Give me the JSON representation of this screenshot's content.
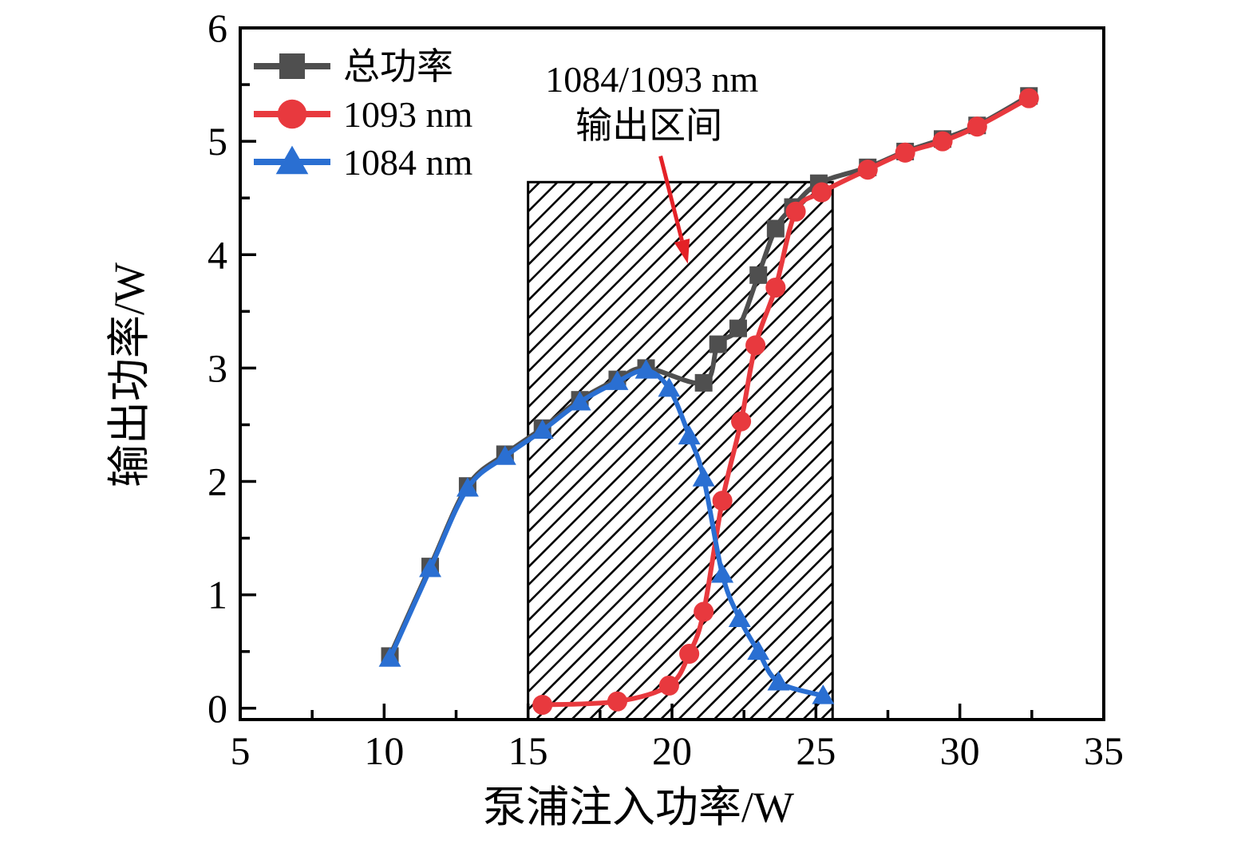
{
  "chart_data": {
    "type": "line",
    "title": "",
    "xlabel": "泵浦注入功率/W",
    "ylabel": "输出功率/W",
    "xlim": [
      5,
      35
    ],
    "ylim": [
      -0.1,
      6
    ],
    "x_major_ticks": [
      5,
      10,
      15,
      20,
      25,
      30,
      35
    ],
    "x_minor_ticks": [
      7.5,
      12.5,
      17.5,
      22.5,
      27.5,
      32.5
    ],
    "y_major_ticks": [
      0,
      1,
      2,
      3,
      4,
      5,
      6
    ],
    "y_minor_ticks": [
      0.5,
      1.5,
      2.5,
      3.5,
      4.5,
      5.5
    ],
    "grid": false,
    "legend_position": "upper-left-inside",
    "frame_color": "#000000",
    "series": [
      {
        "name": "总功率",
        "color": "#4f4f4f",
        "marker": "square",
        "points": [
          [
            10.2,
            0.46
          ],
          [
            11.6,
            1.25
          ],
          [
            12.9,
            1.96
          ],
          [
            14.2,
            2.24
          ],
          [
            15.5,
            2.47
          ],
          [
            16.8,
            2.72
          ],
          [
            18.1,
            2.9
          ],
          [
            19.1,
            3.0
          ],
          [
            21.1,
            2.87
          ],
          [
            21.6,
            3.21
          ],
          [
            22.3,
            3.35
          ],
          [
            23.0,
            3.82
          ],
          [
            23.6,
            4.23
          ],
          [
            24.2,
            4.42
          ],
          [
            25.1,
            4.63
          ],
          [
            26.8,
            4.77
          ],
          [
            28.1,
            4.91
          ],
          [
            29.4,
            5.02
          ],
          [
            30.6,
            5.14
          ],
          [
            32.4,
            5.4
          ]
        ]
      },
      {
        "name": "1093 nm",
        "color": "#e8393e",
        "marker": "circle",
        "points": [
          [
            15.5,
            0.03
          ],
          [
            18.1,
            0.06
          ],
          [
            19.9,
            0.2
          ],
          [
            20.6,
            0.48
          ],
          [
            21.1,
            0.85
          ],
          [
            21.75,
            1.83
          ],
          [
            22.4,
            2.53
          ],
          [
            22.9,
            3.2
          ],
          [
            23.6,
            3.71
          ],
          [
            24.3,
            4.38
          ],
          [
            25.2,
            4.55
          ],
          [
            26.8,
            4.75
          ],
          [
            28.1,
            4.9
          ],
          [
            29.4,
            5.0
          ],
          [
            30.6,
            5.13
          ],
          [
            32.4,
            5.38
          ]
        ]
      },
      {
        "name": "1084 nm",
        "color": "#2a6fd2",
        "marker": "triangle",
        "points": [
          [
            10.2,
            0.44
          ],
          [
            11.6,
            1.23
          ],
          [
            12.9,
            1.94
          ],
          [
            14.2,
            2.22
          ],
          [
            15.5,
            2.45
          ],
          [
            16.8,
            2.7
          ],
          [
            18.1,
            2.88
          ],
          [
            19.1,
            2.98
          ],
          [
            19.9,
            2.82
          ],
          [
            20.6,
            2.4
          ],
          [
            21.1,
            2.03
          ],
          [
            21.75,
            1.18
          ],
          [
            22.35,
            0.79
          ],
          [
            23.0,
            0.5
          ],
          [
            23.7,
            0.23
          ],
          [
            25.25,
            0.11
          ]
        ]
      }
    ],
    "hatch_region": {
      "x1": 15.0,
      "x2": 25.58,
      "y_bottom": -0.1,
      "y_top": 4.64,
      "hatch_style": "diagonal-45deg",
      "border_color": "#000000"
    },
    "annotation": {
      "color": "#e42127",
      "lines": [
        {
          "text": "1084/1093 nm",
          "x": 19.3,
          "y": 5.55
        },
        {
          "text": "输出区间",
          "x": 19.2,
          "y": 5.14
        }
      ],
      "arrow": {
        "from": [
          19.6,
          4.87
        ],
        "to": [
          20.55,
          3.92
        ]
      }
    }
  }
}
